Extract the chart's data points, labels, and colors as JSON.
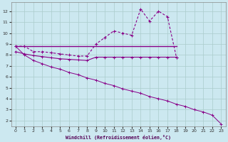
{
  "xlabel": "Windchill (Refroidissement éolien,°C)",
  "bg_color": "#cce8f0",
  "line_color": "#880088",
  "grid_color": "#aacccc",
  "x": [
    0,
    1,
    2,
    3,
    4,
    5,
    6,
    7,
    8,
    9,
    10,
    11,
    12,
    13,
    14,
    15,
    16,
    17,
    18,
    19,
    20,
    21,
    22,
    23
  ],
  "lineA_y": [
    8.8,
    8.8,
    8.3,
    8.3,
    8.2,
    8.1,
    8.0,
    7.9,
    7.9,
    9.0,
    9.6,
    10.2,
    10.0,
    9.8,
    12.2,
    11.1,
    12.0,
    11.5,
    7.8,
    null,
    null,
    null,
    null,
    null
  ],
  "lineB_y": [
    8.8,
    8.8,
    8.8,
    8.8,
    8.8,
    8.8,
    8.8,
    8.8,
    8.8,
    8.8,
    8.8,
    8.8,
    8.8,
    8.8,
    8.8,
    8.8,
    8.8,
    8.8,
    8.8,
    null,
    null,
    null,
    null,
    null
  ],
  "lineC_y": [
    8.3,
    8.1,
    7.95,
    7.85,
    7.75,
    7.65,
    7.6,
    7.55,
    7.5,
    7.8,
    7.8,
    7.8,
    7.8,
    7.8,
    7.8,
    7.8,
    7.8,
    7.8,
    7.8,
    null,
    null,
    null,
    null,
    null
  ],
  "lineD_y": [
    8.8,
    8.0,
    7.5,
    7.2,
    6.9,
    6.7,
    6.4,
    6.2,
    5.9,
    5.7,
    5.4,
    5.2,
    4.9,
    4.7,
    4.5,
    4.2,
    4.0,
    3.8,
    3.5,
    3.3,
    3.0,
    2.8,
    2.5,
    1.7
  ],
  "ylim": [
    1.5,
    12.8
  ],
  "xlim": [
    -0.5,
    23.5
  ],
  "yticks": [
    2,
    3,
    4,
    5,
    6,
    7,
    8,
    9,
    10,
    11,
    12
  ],
  "xticks": [
    0,
    1,
    2,
    3,
    4,
    5,
    6,
    7,
    8,
    9,
    10,
    11,
    12,
    13,
    14,
    15,
    16,
    17,
    18,
    19,
    20,
    21,
    22,
    23
  ]
}
